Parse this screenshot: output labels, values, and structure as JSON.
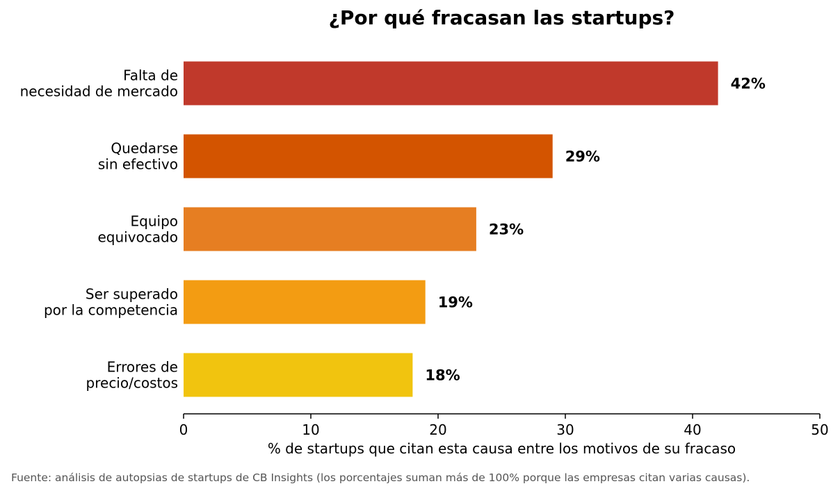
{
  "chart_data": {
    "type": "bar",
    "orientation": "horizontal",
    "title": "¿Por qué fracasan las startups?",
    "categories": [
      [
        "Falta de",
        "necesidad de mercado"
      ],
      [
        "Quedarse",
        "sin efectivo"
      ],
      [
        "Equipo",
        "equivocado"
      ],
      [
        "Ser superado",
        "por la competencia"
      ],
      [
        "Errores de",
        "precio/costos"
      ]
    ],
    "values": [
      42,
      29,
      23,
      19,
      18
    ],
    "data_labels": [
      "42%",
      "29%",
      "23%",
      "19%",
      "18%"
    ],
    "colors": [
      "#c0392b",
      "#d35400",
      "#e67e22",
      "#f39c12",
      "#f1c40f"
    ],
    "xlabel": "% de startups que citan esta causa entre los motivos de su fracaso",
    "ylabel": "",
    "xlim": [
      0,
      50
    ],
    "xticks": [
      0,
      10,
      20,
      30,
      40,
      50
    ],
    "grid": false,
    "legend": "none"
  },
  "source_note": "Fuente: análisis de autopsias de startups de CB Insights (los porcentajes suman más de 100% porque las empresas citan varias causas)."
}
